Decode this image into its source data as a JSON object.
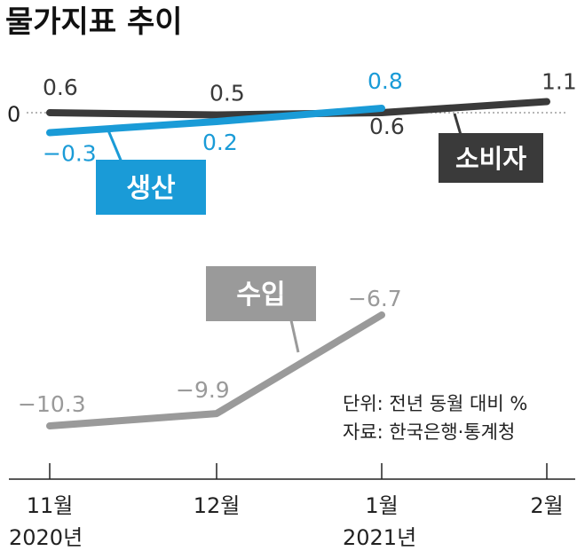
{
  "title": "물가지표 추이",
  "colors": {
    "consumer": "#3a3a3a",
    "producer": "#1a9bd7",
    "import": "#9a9a9a",
    "axis": "#222222",
    "zero_line": "#8a8a8a"
  },
  "labels": {
    "consumer": "소비자",
    "producer": "생산",
    "import": "수입",
    "zero": "0"
  },
  "note": {
    "unit": "단위: 전년 동월 대비 %",
    "source": "자료: 한국은행·통계청"
  },
  "x_axis": {
    "ticks": [
      "11월",
      "12월",
      "1월",
      "2월"
    ],
    "years": [
      "2020년",
      "2021년"
    ]
  },
  "chart_data": [
    {
      "type": "line",
      "x": [
        "11월",
        "12월",
        "1월",
        "2월"
      ],
      "ylim": [
        -0.3,
        1.1
      ],
      "series": [
        {
          "name": "소비자",
          "values": [
            0.6,
            0.5,
            0.6,
            1.1
          ],
          "value_labels": [
            "0.6",
            "0.5",
            "0.6",
            "1.1"
          ]
        },
        {
          "name": "생산",
          "values": [
            -0.3,
            0.2,
            0.8,
            null
          ],
          "value_labels": [
            "−0.3",
            "0.2",
            "0.8",
            ""
          ]
        }
      ]
    },
    {
      "type": "line",
      "x": [
        "11월",
        "12월",
        "1월",
        "2월"
      ],
      "ylim": [
        -10.3,
        -6.7
      ],
      "series": [
        {
          "name": "수입",
          "values": [
            -10.3,
            -9.9,
            -6.7,
            null
          ],
          "value_labels": [
            "−10.3",
            "−9.9",
            "−6.7",
            ""
          ]
        }
      ]
    }
  ]
}
